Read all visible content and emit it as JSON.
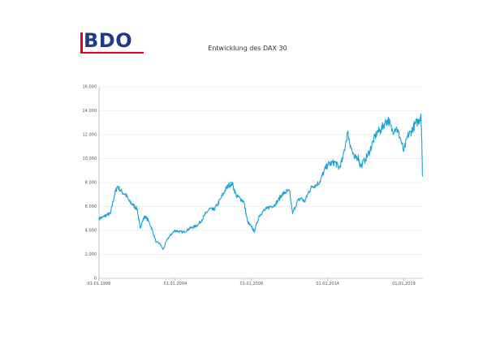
{
  "logo": {
    "text": "BDO"
  },
  "chart_data": {
    "type": "line",
    "title": "Entwicklung des DAX 30",
    "xlabel": "",
    "ylabel": "",
    "ylim": [
      0,
      16000
    ],
    "yticks": [
      0,
      2000,
      4000,
      6000,
      8000,
      10000,
      12000,
      14000,
      16000
    ],
    "ytick_labels": [
      "0",
      "2.000",
      "4.000",
      "6.000",
      "8.000",
      "10.000",
      "12.000",
      "14.000",
      "16.000"
    ],
    "xlim": [
      1999.0,
      2020.25
    ],
    "xticks": [
      1999.0,
      2004.0,
      2009.0,
      2014.0,
      2019.0
    ],
    "xtick_labels": [
      "01.01.1999",
      "01.01.2004",
      "01.01.2009",
      "01.01.2014",
      "01.01.2019"
    ],
    "grid": true,
    "line_color": "#1ba3d6",
    "series": [
      {
        "x": [
          1999.0,
          1999.25,
          1999.5,
          1999.75,
          2000.0,
          2000.2,
          2000.5,
          2000.75,
          2001.0,
          2001.25,
          2001.5,
          2001.7,
          2001.8,
          2002.0,
          2002.25,
          2002.5,
          2002.75,
          2003.0,
          2003.2,
          2003.5,
          2003.75,
          2004.0,
          2004.25,
          2004.5,
          2004.75,
          2005.0,
          2005.25,
          2005.5,
          2005.75,
          2006.0,
          2006.25,
          2006.5,
          2006.75,
          2007.0,
          2007.25,
          2007.5,
          2007.75,
          2008.0,
          2008.25,
          2008.5,
          2008.75,
          2009.0,
          2009.2,
          2009.5,
          2009.75,
          2010.0,
          2010.25,
          2010.5,
          2010.75,
          2011.0,
          2011.25,
          2011.5,
          2011.7,
          2012.0,
          2012.25,
          2012.5,
          2012.75,
          2013.0,
          2013.25,
          2013.5,
          2013.75,
          2014.0,
          2014.25,
          2014.5,
          2014.75,
          2015.0,
          2015.3,
          2015.5,
          2015.75,
          2016.0,
          2016.15,
          2016.5,
          2016.75,
          2017.0,
          2017.25,
          2017.5,
          2017.75,
          2018.0,
          2018.25,
          2018.5,
          2018.75,
          2019.0,
          2019.25,
          2019.5,
          2019.75,
          2020.0,
          2020.12,
          2020.18,
          2020.22
        ],
        "y": [
          5000,
          5100,
          5300,
          5400,
          6900,
          7700,
          7200,
          7000,
          6400,
          6100,
          5800,
          4200,
          4600,
          5200,
          4800,
          4000,
          3000,
          2900,
          2400,
          3300,
          3700,
          4000,
          3900,
          3850,
          4000,
          4200,
          4300,
          4500,
          4900,
          5400,
          5800,
          5700,
          6100,
          6700,
          7300,
          7800,
          7900,
          6900,
          6700,
          6400,
          4700,
          4300,
          3900,
          5200,
          5600,
          5800,
          6000,
          6100,
          6500,
          7000,
          7200,
          7300,
          5400,
          6400,
          6700,
          6400,
          7200,
          7700,
          7800,
          8100,
          8900,
          9500,
          9600,
          9700,
          9200,
          10000,
          12200,
          11100,
          10000,
          10200,
          9300,
          10000,
          10600,
          11500,
          12200,
          12400,
          13000,
          13200,
          12300,
          12600,
          11800,
          10600,
          11900,
          12300,
          12900,
          13200,
          13700,
          11500,
          8500
        ]
      }
    ]
  }
}
